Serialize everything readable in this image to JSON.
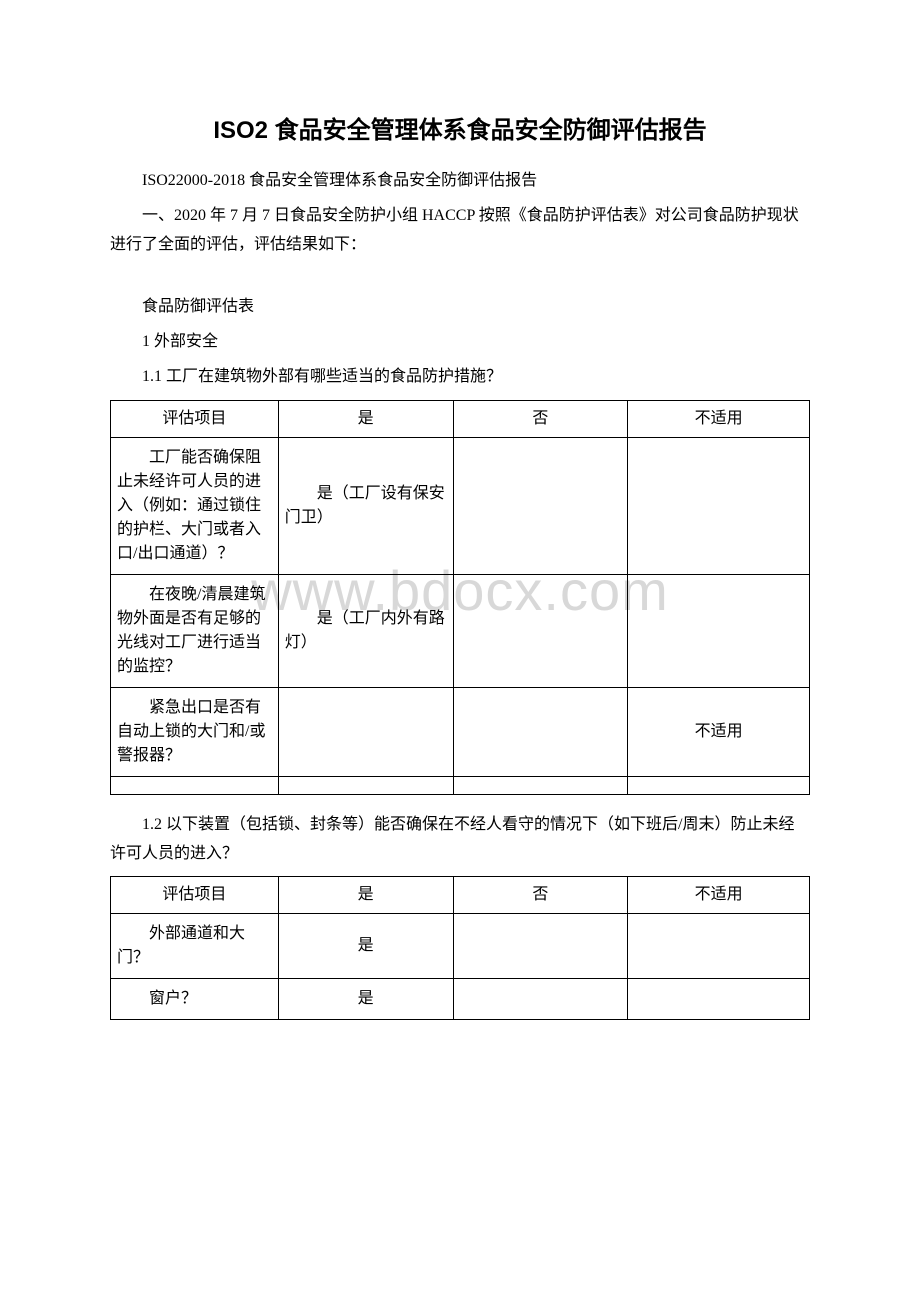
{
  "watermark": "www.bdocx.com",
  "title": "ISO2 食品安全管理体系食品安全防御评估报告",
  "para1": "ISO22000-2018 食品安全管理体系食品安全防御评估报告",
  "para2": "一、2020 年 7 月 7 日食品安全防护小组 HACCP 按照《食品防护评估表》对公司食品防护现状进行了全面的评估，评估结果如下：",
  "para3": "食品防御评估表",
  "para4": "1 外部安全",
  "para5": "1.1 工厂在建筑物外部有哪些适当的食品防护措施？",
  "table1": {
    "headers": [
      "评估项目",
      "是",
      "否",
      "不适用"
    ],
    "rows": [
      {
        "item_first": "　　工厂能否确",
        "item_rest": "保阻止未经许可人员的进入（例如：通过锁住的护栏、大门或者入口/出口通道）？",
        "yes": "　　是（工厂设有保安门卫）",
        "no": "",
        "na": ""
      },
      {
        "item_first": "　　在夜晚/清晨",
        "item_rest": "建筑物外面是否有足够的光线对工厂进行适当的监控？",
        "yes": "　　是（工厂内外有路灯）",
        "no": "",
        "na": ""
      },
      {
        "item_first": "　　紧急出口是",
        "item_rest": "否有自动上锁的大门和/或警报器？",
        "yes": "",
        "no": "",
        "na": "不适用"
      }
    ]
  },
  "para6": "1.2 以下装置（包括锁、封条等）能否确保在不经人看守的情况下（如下班后/周末）防止未经许可人员的进入？",
  "table2": {
    "headers": [
      "评估项目",
      "是",
      "否",
      "不适用"
    ],
    "rows": [
      {
        "item_first": "　　外部通道和",
        "item_rest": "大门？",
        "yes": "是",
        "no": "",
        "na": ""
      },
      {
        "item_first": "　　窗户？",
        "item_rest": "",
        "yes": "是",
        "no": "",
        "na": ""
      }
    ]
  }
}
